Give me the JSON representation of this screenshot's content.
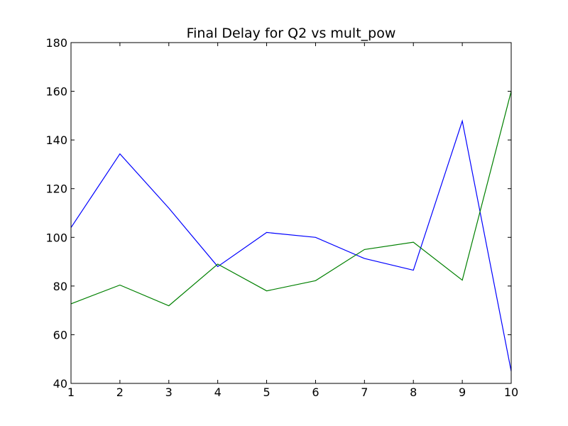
{
  "chart_data": {
    "type": "line",
    "title": "Final Delay for Q2 vs mult_pow",
    "xlabel": "",
    "ylabel": "",
    "x": [
      1,
      2,
      3,
      4,
      5,
      6,
      7,
      8,
      9,
      10
    ],
    "xlim": [
      1,
      10
    ],
    "ylim": [
      40,
      180
    ],
    "xticks": [
      1,
      2,
      3,
      4,
      5,
      6,
      7,
      8,
      9,
      10
    ],
    "yticks": [
      40,
      60,
      80,
      100,
      120,
      140,
      160,
      180
    ],
    "grid": false,
    "series": [
      {
        "color": "#0000ff",
        "values": [
          104,
          134.3,
          112,
          88,
          102,
          100,
          91.3,
          86.5,
          147.8,
          45
        ]
      },
      {
        "color": "#008000",
        "values": [
          72.7,
          80.4,
          71.9,
          89,
          78,
          82.2,
          95,
          98,
          82.4,
          160
        ]
      }
    ]
  }
}
